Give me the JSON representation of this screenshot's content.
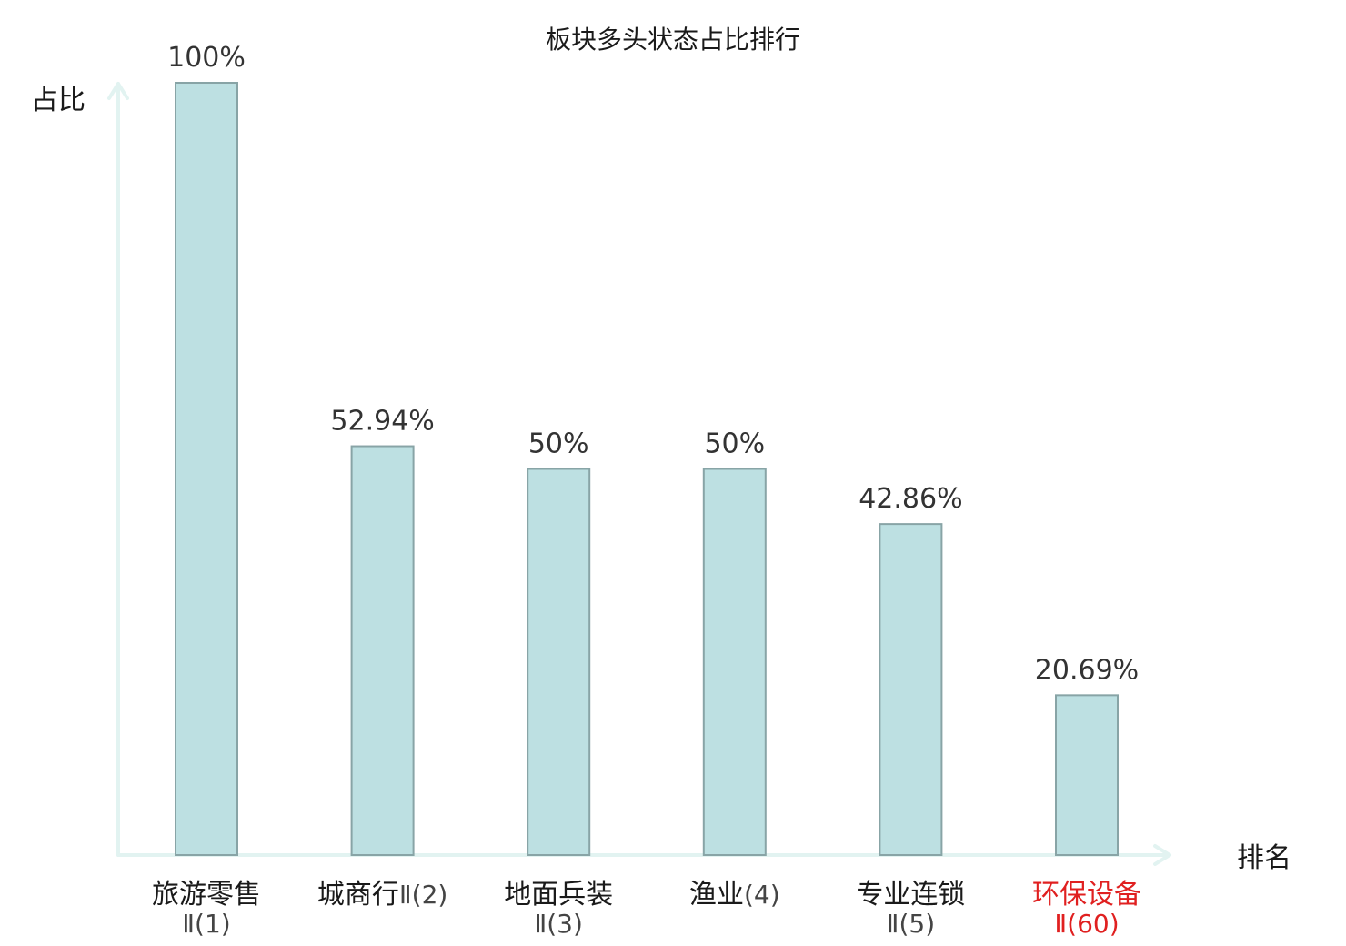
{
  "chart_data": {
    "type": "bar",
    "title": "板块多头状态占比排行",
    "ylabel": "占比",
    "xlabel": "排名",
    "categories": [
      {
        "name": "旅游零售",
        "rank": "Ⅱ(1)",
        "highlight": false
      },
      {
        "name": "城商行",
        "rank": "Ⅱ(2)",
        "highlight": false
      },
      {
        "name": "地面兵装",
        "rank": "Ⅱ(3)",
        "highlight": false
      },
      {
        "name": "渔业",
        "rank": "(4)",
        "highlight": false
      },
      {
        "name": "专业连锁",
        "rank": "Ⅱ(5)",
        "highlight": false
      },
      {
        "name": "环保设备",
        "rank": "Ⅱ(60)",
        "highlight": true
      }
    ],
    "values": [
      100,
      52.94,
      50,
      50,
      42.86,
      20.69
    ],
    "value_labels": [
      "100%",
      "52.94%",
      "50%",
      "50%",
      "42.86%",
      "20.69%"
    ],
    "ylim": [
      0,
      100
    ],
    "grid": false,
    "colors": {
      "bar_fill": "#bde0e2",
      "bar_edge": "#88a4a6",
      "axis": "#e2f3f1",
      "highlight_text": "#e02020",
      "normal_text": "#1a1a1a",
      "rank_text": "#444444"
    }
  }
}
